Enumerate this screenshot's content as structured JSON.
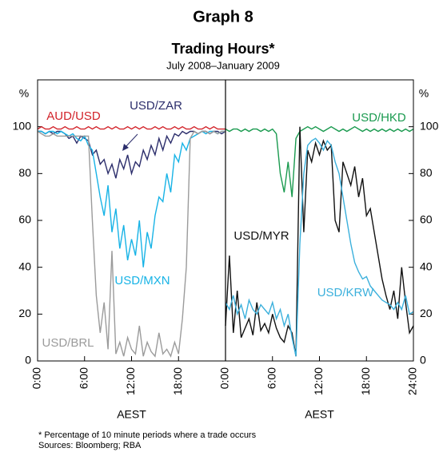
{
  "title": "Graph 8",
  "subtitle": "Trading Hours*",
  "period": "July 2008–January 2009",
  "footnote": "*    Percentage of 10 minute periods where a trade occurs",
  "sources": "Sources: Bloomberg; RBA",
  "chart_data": [
    {
      "type": "line",
      "xlabel": "AEST",
      "ylabel": "%",
      "x": [
        0,
        0.5,
        1,
        1.5,
        2,
        2.5,
        3,
        3.5,
        4,
        4.5,
        5,
        5.5,
        6,
        6.5,
        7,
        7.5,
        8,
        8.5,
        9,
        9.5,
        10,
        10.5,
        11,
        11.5,
        12,
        12.5,
        13,
        13.5,
        14,
        14.5,
        15,
        15.5,
        16,
        16.5,
        17,
        17.5,
        18,
        18.5,
        19,
        19.5,
        20,
        20.5,
        21,
        21.5,
        22,
        22.5,
        23,
        23.5,
        24
      ],
      "xlim": [
        0,
        24
      ],
      "xticks": [
        {
          "value": 0,
          "label": "0:00"
        },
        {
          "value": 6,
          "label": "6:00"
        },
        {
          "value": 12,
          "label": "12:00"
        },
        {
          "value": 18,
          "label": "18:00"
        }
      ],
      "ylim": [
        0,
        120
      ],
      "yticks": [
        0,
        20,
        40,
        60,
        80,
        100
      ],
      "series": [
        {
          "name": "AUD/USD",
          "color": "#d2232a",
          "values": [
            99,
            100,
            99,
            99,
            100,
            99,
            99,
            100,
            99,
            99,
            100,
            99,
            99,
            100,
            99,
            100,
            99,
            99,
            100,
            99,
            100,
            99,
            99,
            100,
            99,
            100,
            99,
            100,
            99,
            99,
            100,
            99,
            100,
            99,
            99,
            100,
            99,
            100,
            99,
            99,
            100,
            99,
            99,
            100,
            99,
            100,
            99,
            99,
            99
          ]
        },
        {
          "name": "USD/ZAR",
          "color": "#2b2d6b",
          "values": [
            98,
            98,
            97,
            98,
            97,
            98,
            98,
            97,
            95,
            96,
            93,
            96,
            95,
            94,
            88,
            90,
            84,
            86,
            80,
            84,
            78,
            86,
            82,
            88,
            80,
            85,
            83,
            90,
            86,
            92,
            88,
            95,
            90,
            96,
            93,
            97,
            96,
            98,
            97,
            98,
            98,
            97,
            98,
            98,
            97,
            98,
            98,
            97,
            98
          ]
        },
        {
          "name": "USD/MXN",
          "color": "#17b3e6",
          "values": [
            98,
            98,
            97,
            98,
            98,
            97,
            98,
            97,
            96,
            97,
            95,
            94,
            96,
            92,
            90,
            80,
            70,
            62,
            75,
            55,
            65,
            48,
            58,
            43,
            52,
            45,
            60,
            40,
            55,
            48,
            62,
            70,
            68,
            80,
            72,
            88,
            85,
            93,
            90,
            95,
            96,
            97,
            98,
            97,
            98,
            98,
            97,
            98,
            98
          ]
        },
        {
          "name": "USD/BRL",
          "color": "#9b9b9b",
          "values": [
            98,
            97,
            96,
            96,
            97,
            96,
            96,
            96,
            96,
            96,
            96,
            96,
            96,
            96,
            60,
            28,
            12,
            25,
            5,
            47,
            3,
            8,
            2,
            10,
            5,
            3,
            15,
            2,
            8,
            4,
            2,
            12,
            3,
            5,
            2,
            8,
            3,
            18,
            40,
            95,
            98,
            97,
            98,
            98,
            97,
            98,
            97,
            98,
            98
          ]
        }
      ]
    },
    {
      "type": "line",
      "xlabel": "AEST",
      "ylabel": "%",
      "x": [
        0,
        0.5,
        1,
        1.5,
        2,
        2.5,
        3,
        3.5,
        4,
        4.5,
        5,
        5.5,
        6,
        6.5,
        7,
        7.5,
        8,
        8.5,
        9,
        9.5,
        10,
        10.5,
        11,
        11.5,
        12,
        12.5,
        13,
        13.5,
        14,
        14.5,
        15,
        15.5,
        16,
        16.5,
        17,
        17.5,
        18,
        18.5,
        19,
        19.5,
        20,
        20.5,
        21,
        21.5,
        22,
        22.5,
        23,
        23.5,
        24
      ],
      "xlim": [
        0,
        24
      ],
      "xticks": [
        {
          "value": 0,
          "label": "0:00"
        },
        {
          "value": 6,
          "label": "6:00"
        },
        {
          "value": 12,
          "label": "12:00"
        },
        {
          "value": 18,
          "label": "18:00"
        },
        {
          "value": 24,
          "label": "24:00"
        }
      ],
      "ylim": [
        0,
        120
      ],
      "yticks": [
        0,
        20,
        40,
        60,
        80,
        100
      ],
      "series": [
        {
          "name": "USD/HKD",
          "color": "#1a9a4f",
          "values": [
            99,
            98,
            99,
            99,
            98,
            99,
            98,
            99,
            99,
            98,
            99,
            98,
            99,
            97,
            80,
            72,
            85,
            70,
            95,
            98,
            99,
            100,
            99,
            100,
            99,
            98,
            99,
            100,
            99,
            98,
            99,
            98,
            99,
            100,
            99,
            98,
            99,
            98,
            99,
            98,
            99,
            98,
            99,
            98,
            99,
            98,
            99,
            98,
            99
          ]
        },
        {
          "name": "USD/MYR",
          "color": "#111111",
          "values": [
            15,
            45,
            12,
            30,
            10,
            14,
            18,
            11,
            25,
            13,
            16,
            12,
            20,
            14,
            10,
            8,
            15,
            12,
            2,
            100,
            55,
            90,
            85,
            93,
            88,
            94,
            90,
            92,
            60,
            55,
            85,
            80,
            75,
            83,
            70,
            78,
            62,
            65,
            55,
            45,
            35,
            28,
            22,
            30,
            18,
            40,
            25,
            12,
            15
          ]
        },
        {
          "name": "USD/KRW",
          "color": "#3bb0dc",
          "values": [
            25,
            22,
            28,
            20,
            24,
            18,
            26,
            22,
            20,
            24,
            22,
            20,
            25,
            18,
            22,
            15,
            20,
            10,
            2,
            50,
            80,
            92,
            94,
            95,
            93,
            90,
            94,
            92,
            85,
            80,
            70,
            60,
            50,
            42,
            38,
            35,
            36,
            32,
            30,
            28,
            26,
            25,
            24,
            22,
            25,
            22,
            28,
            20,
            21
          ]
        }
      ]
    }
  ]
}
